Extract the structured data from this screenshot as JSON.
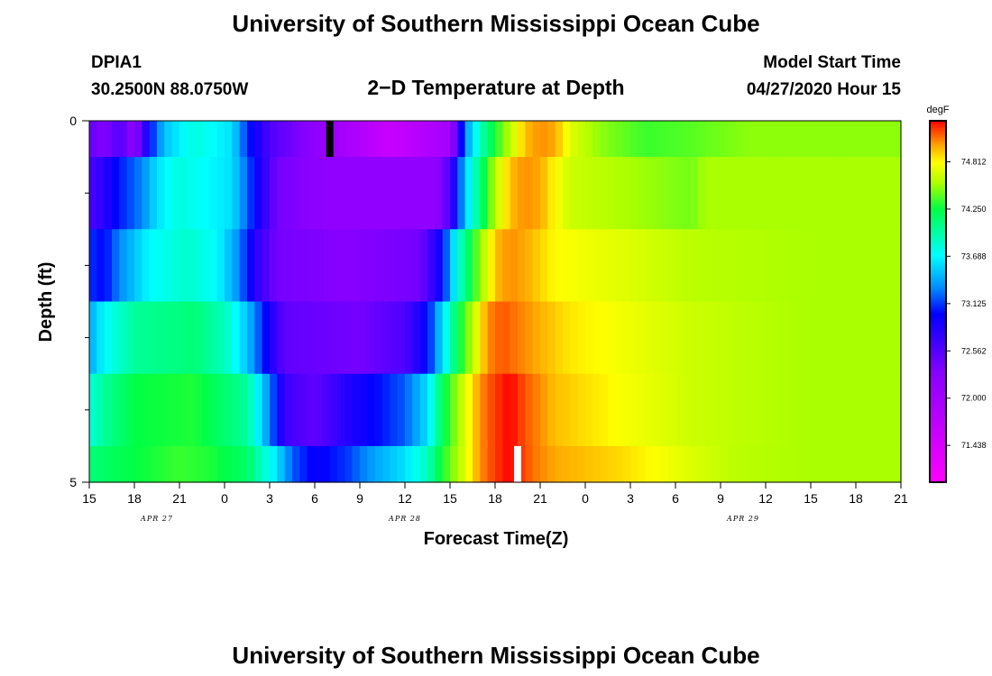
{
  "header": {
    "title_top": "University of Southern Mississippi Ocean Cube",
    "title_bottom": "University of Southern Mississippi Ocean Cube",
    "station": "DPIA1",
    "location": "30.2500N 88.0750W",
    "model_label": "Model Start Time",
    "model_time": "04/27/2020 Hour 15"
  },
  "chart_data": {
    "type": "heatmap",
    "title": "2−D Temperature at Depth",
    "xlabel": "Forecast Time(Z)",
    "ylabel": "Depth (ft)",
    "x_range_hours": [
      0,
      54
    ],
    "y_range": [
      0,
      5
    ],
    "x_tick_labels": [
      "15",
      "18",
      "21",
      "0",
      "3",
      "6",
      "9",
      "12",
      "15",
      "18",
      "21",
      "0",
      "3",
      "6",
      "9",
      "12",
      "15",
      "18",
      "21"
    ],
    "y_tick_labels": [
      {
        "depth": 0,
        "label": "0"
      },
      {
        "depth": 5,
        "label": "5"
      }
    ],
    "y_minor_ticks": [
      1,
      2,
      3,
      4
    ],
    "date_labels": [
      {
        "label": "APR  27",
        "hour": 4.5
      },
      {
        "label": "APR  28",
        "hour": 21
      },
      {
        "label": "APR  29",
        "hour": 43.5
      }
    ],
    "colorbar": {
      "unit": "degF",
      "min": 71.0,
      "max": 75.3,
      "ticks": [
        74.812,
        74.25,
        73.688,
        73.125,
        72.562,
        72.0,
        71.438
      ],
      "tick_labels": [
        "74.812",
        "74.250",
        "73.688",
        "73.125",
        "72.562",
        "72.000",
        "71.438"
      ],
      "stops": [
        {
          "value": 71.0,
          "color": "#ff00ff"
        },
        {
          "value": 72.3,
          "color": "#8800ff"
        },
        {
          "value": 73.0,
          "color": "#0000ff"
        },
        {
          "value": 73.3,
          "color": "#0088ff"
        },
        {
          "value": 73.7,
          "color": "#00ffff"
        },
        {
          "value": 74.25,
          "color": "#00ff44"
        },
        {
          "value": 74.55,
          "color": "#aaff00"
        },
        {
          "value": 74.8,
          "color": "#ffff00"
        },
        {
          "value": 75.0,
          "color": "#ffaa00"
        },
        {
          "value": 75.3,
          "color": "#ff0000"
        }
      ]
    },
    "depth_layers": [
      {
        "top": 0.0,
        "bottom": 0.5,
        "keyframes": [
          [
            0,
            72.5
          ],
          [
            1,
            72.3
          ],
          [
            2,
            72.6
          ],
          [
            3,
            72.2
          ],
          [
            4,
            73.0
          ],
          [
            5,
            73.5
          ],
          [
            7,
            73.8
          ],
          [
            9.5,
            73.6
          ],
          [
            10.5,
            73.1
          ],
          [
            12,
            72.6
          ],
          [
            16,
            72.1
          ],
          [
            20,
            71.6
          ],
          [
            24,
            72.0
          ],
          [
            25,
            73.3
          ],
          [
            26,
            73.9
          ],
          [
            27,
            74.3
          ],
          [
            28,
            74.6
          ],
          [
            29,
            74.95
          ],
          [
            30,
            75.05
          ],
          [
            31,
            75.0
          ],
          [
            32,
            74.7
          ],
          [
            34,
            74.5
          ],
          [
            37,
            74.35
          ],
          [
            40,
            74.4
          ],
          [
            44,
            74.5
          ],
          [
            48,
            74.5
          ],
          [
            54,
            74.5
          ]
        ]
      },
      {
        "top": 0.5,
        "bottom": 1.5,
        "keyframes": [
          [
            0,
            72.6
          ],
          [
            1,
            72.8
          ],
          [
            2,
            73.05
          ],
          [
            3.5,
            73.3
          ],
          [
            4.5,
            73.6
          ],
          [
            6,
            73.8
          ],
          [
            9.5,
            73.6
          ],
          [
            11,
            73.0
          ],
          [
            12.5,
            72.4
          ],
          [
            16,
            72.2
          ],
          [
            23,
            72.2
          ],
          [
            24,
            72.6
          ],
          [
            25,
            73.5
          ],
          [
            26,
            74.1
          ],
          [
            27,
            74.6
          ],
          [
            28,
            74.95
          ],
          [
            29,
            75.05
          ],
          [
            30,
            75.0
          ],
          [
            31,
            74.8
          ],
          [
            32,
            74.65
          ],
          [
            36,
            74.55
          ],
          [
            40,
            74.45
          ],
          [
            41,
            74.55
          ],
          [
            48,
            74.55
          ],
          [
            54,
            74.55
          ]
        ]
      },
      {
        "top": 1.5,
        "bottom": 2.5,
        "keyframes": [
          [
            0,
            73.1
          ],
          [
            1,
            73.0
          ],
          [
            2,
            73.3
          ],
          [
            4,
            73.7
          ],
          [
            6.5,
            73.85
          ],
          [
            8.5,
            73.7
          ],
          [
            10,
            73.3
          ],
          [
            11,
            72.8
          ],
          [
            12.5,
            72.4
          ],
          [
            17,
            72.3
          ],
          [
            22,
            72.4
          ],
          [
            23.5,
            73.0
          ],
          [
            24.5,
            73.8
          ],
          [
            25.5,
            74.3
          ],
          [
            26.5,
            74.7
          ],
          [
            27,
            74.95
          ],
          [
            28,
            75.05
          ],
          [
            29,
            75.0
          ],
          [
            31,
            74.8
          ],
          [
            36,
            74.7
          ],
          [
            40,
            74.6
          ],
          [
            48,
            74.55
          ],
          [
            54,
            74.55
          ]
        ]
      },
      {
        "top": 2.5,
        "bottom": 3.5,
        "keyframes": [
          [
            0,
            73.4
          ],
          [
            1,
            73.7
          ],
          [
            3,
            74.0
          ],
          [
            7,
            74.1
          ],
          [
            9,
            73.9
          ],
          [
            10.5,
            73.5
          ],
          [
            12,
            72.9
          ],
          [
            13,
            72.5
          ],
          [
            18,
            72.4
          ],
          [
            21,
            72.6
          ],
          [
            22.5,
            73.0
          ],
          [
            23.5,
            73.6
          ],
          [
            24.5,
            74.2
          ],
          [
            25.5,
            74.6
          ],
          [
            26.5,
            75.05
          ],
          [
            27.5,
            75.15
          ],
          [
            29,
            75.05
          ],
          [
            32,
            74.85
          ],
          [
            36,
            74.75
          ],
          [
            40,
            74.65
          ],
          [
            48,
            74.55
          ],
          [
            54,
            74.55
          ]
        ]
      },
      {
        "top": 3.5,
        "bottom": 4.5,
        "keyframes": [
          [
            0,
            73.8
          ],
          [
            1,
            74.0
          ],
          [
            3,
            74.25
          ],
          [
            7,
            74.3
          ],
          [
            10.5,
            74.0
          ],
          [
            12,
            73.3
          ],
          [
            13,
            72.7
          ],
          [
            15,
            72.5
          ],
          [
            17,
            72.8
          ],
          [
            19,
            73.0
          ],
          [
            21,
            73.2
          ],
          [
            22.5,
            73.6
          ],
          [
            23.5,
            74.2
          ],
          [
            25,
            74.7
          ],
          [
            26,
            75.05
          ],
          [
            27,
            75.2
          ],
          [
            28,
            75.3
          ],
          [
            29,
            75.15
          ],
          [
            31,
            74.95
          ],
          [
            35,
            74.8
          ],
          [
            40,
            74.65
          ],
          [
            48,
            74.55
          ],
          [
            54,
            74.55
          ]
        ]
      },
      {
        "top": 4.5,
        "bottom": 5.0,
        "keyframes": [
          [
            0,
            74.1
          ],
          [
            3,
            74.25
          ],
          [
            6,
            74.35
          ],
          [
            8,
            74.3
          ],
          [
            10.5,
            74.15
          ],
          [
            12.5,
            73.6
          ],
          [
            13.5,
            73.2
          ],
          [
            15,
            72.95
          ],
          [
            17,
            73.1
          ],
          [
            19,
            73.4
          ],
          [
            21,
            73.6
          ],
          [
            22.5,
            73.9
          ],
          [
            23.5,
            74.3
          ],
          [
            25,
            74.7
          ],
          [
            26,
            75.05
          ],
          [
            27,
            75.2
          ],
          [
            28,
            75.3
          ],
          [
            29.5,
            75.1
          ],
          [
            31,
            75.0
          ],
          [
            35,
            74.9
          ],
          [
            40,
            74.7
          ],
          [
            43,
            74.6
          ],
          [
            48,
            74.55
          ],
          [
            54,
            74.55
          ]
        ]
      }
    ],
    "markers": [
      {
        "color": "#000000",
        "hour": 16,
        "depth_top": 0.0,
        "depth_bottom": 0.5
      },
      {
        "color": "#ffffff",
        "hour": 28.5,
        "depth_top": 4.5,
        "depth_bottom": 5.0
      }
    ]
  }
}
